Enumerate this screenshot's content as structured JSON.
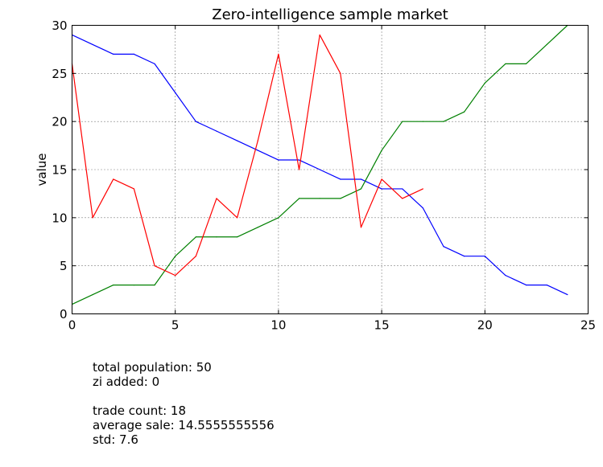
{
  "chart_data": {
    "type": "line",
    "title": "Zero-intelligence sample market",
    "xlabel": "",
    "ylabel": "value",
    "xlim": [
      0,
      25
    ],
    "ylim": [
      0,
      30
    ],
    "xticks": [
      0,
      5,
      10,
      15,
      20,
      25
    ],
    "yticks": [
      0,
      5,
      10,
      15,
      20,
      25,
      30
    ],
    "grid": true,
    "series": [
      {
        "color": "#0000ff",
        "x": [
          0,
          1,
          2,
          3,
          4,
          5,
          6,
          7,
          8,
          9,
          10,
          11,
          12,
          13,
          14,
          15,
          16,
          17,
          18,
          19,
          20,
          21,
          22,
          23,
          24
        ],
        "values": [
          29,
          28,
          27,
          27,
          26,
          23,
          20,
          19,
          18,
          17,
          16,
          16,
          15,
          14,
          14,
          13,
          13,
          11,
          7,
          6,
          6,
          4,
          3,
          3,
          2
        ]
      },
      {
        "color": "#008000",
        "x": [
          0,
          1,
          2,
          3,
          4,
          5,
          6,
          7,
          8,
          9,
          10,
          11,
          12,
          13,
          14,
          15,
          16,
          17,
          18,
          19,
          20,
          21,
          22,
          23,
          24
        ],
        "values": [
          1,
          2,
          3,
          3,
          3,
          6,
          8,
          8,
          8,
          9,
          10,
          12,
          12,
          12,
          13,
          17,
          20,
          20,
          20,
          21,
          24,
          26,
          26,
          28,
          30
        ]
      },
      {
        "color": "#ff0000",
        "x": [
          0,
          1,
          2,
          3,
          4,
          5,
          6,
          7,
          8,
          9,
          10,
          11,
          12,
          13,
          14,
          15,
          16,
          17
        ],
        "values": [
          26,
          10,
          14,
          13,
          5,
          4,
          6,
          12,
          10,
          18,
          27,
          15,
          29,
          25,
          9,
          14,
          12,
          13
        ]
      }
    ]
  },
  "stats": {
    "population": "total population: 50",
    "zi_added": "zi added: 0",
    "trade_count": "trade count: 18",
    "average_sale": "average sale: 14.5555555556",
    "std": "std: 7.6"
  }
}
